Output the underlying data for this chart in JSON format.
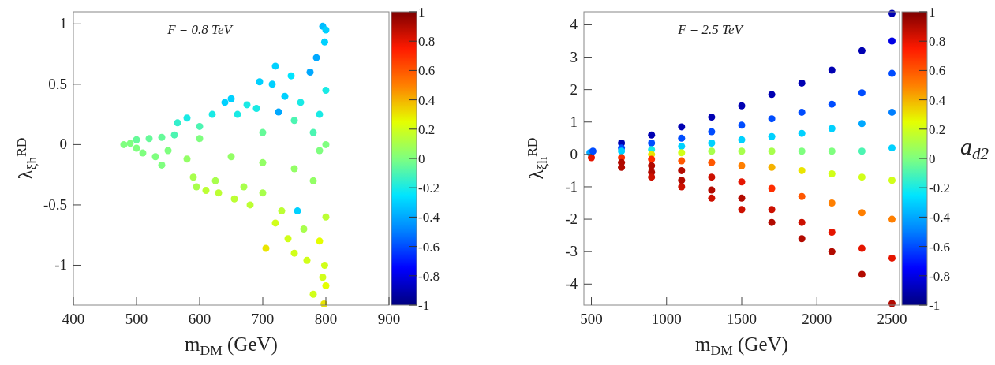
{
  "chart_data": [
    {
      "type": "scatter",
      "title": "F = 0.8 TeV",
      "xlabel": "m$_{DM}$ (GeV)",
      "ylabel": "λ$_{ξh}$$^{RD}$",
      "marker": "circle",
      "xlim": [
        400,
        900
      ],
      "xticks": [
        400,
        500,
        600,
        700,
        800,
        900
      ],
      "ylim": [
        -1.33,
        1.1
      ],
      "yticks": [
        -1,
        -0.5,
        0,
        0.5,
        1
      ],
      "clim": [
        -1,
        1
      ],
      "cticks": [
        -1,
        -0.8,
        -0.6,
        -0.4,
        -0.2,
        0,
        0.2,
        0.4,
        0.6,
        0.8,
        1
      ],
      "x": [
        480,
        490,
        500,
        500,
        510,
        520,
        530,
        540,
        540,
        550,
        560,
        565,
        580,
        580,
        590,
        595,
        600,
        600,
        610,
        620,
        625,
        630,
        640,
        650,
        650,
        655,
        660,
        670,
        675,
        680,
        690,
        695,
        700,
        700,
        700,
        705,
        715,
        720,
        720,
        725,
        730,
        735,
        740,
        745,
        750,
        750,
        750,
        755,
        760,
        765,
        770,
        775,
        780,
        780,
        780,
        785,
        790,
        790,
        790,
        795,
        795,
        798,
        798,
        800,
        800,
        800,
        800,
        797,
        800
      ],
      "values": [
        0,
        0.01,
        -0.03,
        0.04,
        -0.07,
        0.05,
        -0.1,
        0.06,
        -0.17,
        -0.05,
        0.08,
        0.18,
        0.22,
        -0.12,
        -0.27,
        -0.35,
        0.15,
        0.05,
        -0.38,
        0.25,
        -0.3,
        -0.4,
        0.35,
        0.38,
        -0.1,
        -0.45,
        0.25,
        -0.35,
        0.33,
        -0.5,
        0.3,
        0.52,
        -0.4,
        0.1,
        -0.15,
        -0.86,
        0.5,
        0.65,
        -0.65,
        0.27,
        -0.55,
        0.4,
        -0.78,
        0.57,
        -0.9,
        0.2,
        -0.2,
        -0.55,
        0.35,
        -0.7,
        -0.96,
        0.6,
        -1.24,
        0.1,
        -0.3,
        0.72,
        -0.8,
        0.25,
        -0.05,
        0.98,
        -1.1,
        0.85,
        -1.0,
        0.45,
        -0.6,
        0,
        -1.17,
        -1.32,
        0.95
      ],
      "cvalues": [
        0,
        0,
        0,
        -0.05,
        0,
        -0.05,
        0,
        -0.05,
        0,
        0,
        -0.1,
        -0.15,
        -0.2,
        0.05,
        0.1,
        0.1,
        -0.1,
        0,
        0.15,
        -0.2,
        0.1,
        0.15,
        -0.3,
        -0.3,
        0.05,
        0.15,
        -0.2,
        0.1,
        -0.2,
        0.15,
        -0.2,
        -0.3,
        0.1,
        -0.05,
        0.05,
        0.3,
        -0.3,
        -0.3,
        0.2,
        -0.4,
        0.15,
        -0.3,
        0.2,
        -0.25,
        0.2,
        -0.1,
        0.05,
        -0.3,
        -0.2,
        0.1,
        0.2,
        -0.4,
        0.2,
        -0.1,
        0.05,
        -0.4,
        0.25,
        -0.2,
        0,
        -0.35,
        0.2,
        -0.3,
        0.2,
        -0.2,
        0.15,
        0,
        0.25,
        0.3,
        -0.3
      ]
    },
    {
      "type": "scatter",
      "title": "F = 2.5 TeV",
      "xlabel": "m$_{DM}$ (GeV)",
      "ylabel": "λ$_{ξh}$$^{RD}$",
      "clabel": "a$_{d2}$",
      "marker": "circle",
      "xlim": [
        450,
        2550
      ],
      "xticks": [
        500,
        1000,
        1500,
        2000,
        2500
      ],
      "ylim": [
        -4.65,
        4.4
      ],
      "yticks": [
        -4,
        -3,
        -2,
        -1,
        0,
        1,
        2,
        3,
        4
      ],
      "clim": [
        -1,
        1
      ],
      "cticks": [
        -1,
        -0.8,
        -0.6,
        -0.4,
        -0.2,
        0,
        0.2,
        0.4,
        0.6,
        0.8,
        1
      ],
      "x": [
        490,
        500,
        510,
        700,
        700,
        700,
        700,
        700,
        700,
        900,
        900,
        900,
        900,
        900,
        900,
        900,
        900,
        1100,
        1100,
        1100,
        1100,
        1100,
        1100,
        1100,
        1100,
        1300,
        1300,
        1300,
        1300,
        1300,
        1300,
        1300,
        1300,
        1500,
        1500,
        1500,
        1500,
        1500,
        1500,
        1500,
        1500,
        1700,
        1700,
        1700,
        1700,
        1700,
        1700,
        1700,
        1700,
        1900,
        1900,
        1900,
        1900,
        1900,
        1900,
        1900,
        1900,
        2100,
        2100,
        2100,
        2100,
        2100,
        2100,
        2100,
        2100,
        2300,
        2300,
        2300,
        2300,
        2300,
        2300,
        2300,
        2300,
        2500,
        2500,
        2500,
        2500,
        2500,
        2500,
        2500,
        2500,
        2500
      ],
      "values": [
        0.05,
        -0.1,
        0.1,
        0.35,
        0.2,
        0.1,
        -0.1,
        -0.25,
        -0.4,
        0.6,
        0.35,
        0.15,
        0,
        -0.15,
        -0.35,
        -0.55,
        -0.7,
        0.85,
        0.5,
        0.25,
        0.05,
        -0.2,
        -0.5,
        -0.8,
        -1.0,
        1.15,
        0.7,
        0.35,
        0.1,
        -0.25,
        -0.7,
        -1.1,
        -1.35,
        1.5,
        0.9,
        0.45,
        0.1,
        -0.35,
        -0.85,
        -1.35,
        -1.7,
        1.85,
        1.1,
        0.55,
        0.1,
        -0.4,
        -1.05,
        -1.7,
        -2.1,
        2.2,
        1.3,
        0.65,
        0.1,
        -0.5,
        -1.3,
        -2.1,
        -2.6,
        2.6,
        1.55,
        0.8,
        0.1,
        -0.6,
        -1.5,
        -2.4,
        -3.0,
        3.2,
        1.9,
        0.95,
        0.1,
        -0.7,
        -1.8,
        -2.9,
        -3.7,
        4.35,
        3.5,
        2.5,
        1.3,
        0.2,
        -0.8,
        -2.0,
        -3.2,
        -4.6
      ],
      "cvalues": [
        -0.4,
        0.8,
        -0.6,
        -0.9,
        -0.6,
        -0.3,
        0.7,
        0.9,
        0.9,
        -0.9,
        -0.6,
        -0.2,
        0.3,
        0.7,
        0.9,
        0.9,
        0.85,
        -0.9,
        -0.6,
        -0.3,
        0.2,
        0.6,
        0.9,
        0.9,
        0.85,
        -0.9,
        -0.6,
        -0.3,
        0.1,
        0.6,
        0.85,
        0.9,
        0.85,
        -0.9,
        -0.6,
        -0.3,
        0.1,
        0.5,
        0.8,
        0.9,
        0.85,
        -0.9,
        -0.6,
        -0.3,
        0.1,
        0.4,
        0.7,
        0.85,
        0.9,
        -0.9,
        -0.6,
        -0.3,
        0,
        0.3,
        0.6,
        0.85,
        0.9,
        -0.9,
        -0.6,
        -0.3,
        0,
        0.2,
        0.5,
        0.8,
        0.9,
        -0.9,
        -0.6,
        -0.4,
        -0.1,
        0.2,
        0.5,
        0.8,
        0.9,
        -0.9,
        -0.8,
        -0.6,
        -0.5,
        -0.3,
        0.2,
        0.5,
        0.8,
        0.9
      ]
    }
  ]
}
